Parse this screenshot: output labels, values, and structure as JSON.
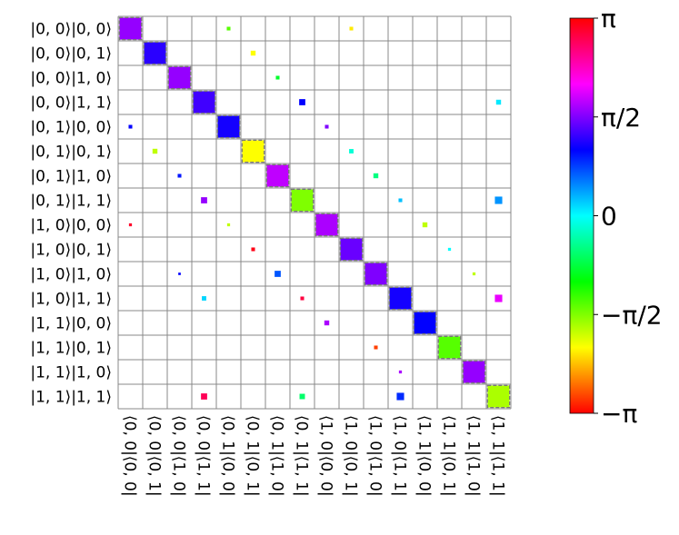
{
  "chart_data": {
    "type": "hinton",
    "rows": [
      "|0, 0⟩|0, 0⟩",
      "|0, 0⟩|0, 1⟩",
      "|0, 0⟩|1, 0⟩",
      "|0, 0⟩|1, 1⟩",
      "|0, 1⟩|0, 0⟩",
      "|0, 1⟩|0, 1⟩",
      "|0, 1⟩|1, 0⟩",
      "|0, 1⟩|1, 1⟩",
      "|1, 0⟩|0, 0⟩",
      "|1, 0⟩|0, 1⟩",
      "|1, 0⟩|1, 0⟩",
      "|1, 0⟩|1, 1⟩",
      "|1, 1⟩|0, 0⟩",
      "|1, 1⟩|0, 1⟩",
      "|1, 1⟩|1, 0⟩",
      "|1, 1⟩|1, 1⟩"
    ],
    "columns": [
      "⟨0, 0|⟨0, 0|",
      "⟨0, 0|⟨0, 1|",
      "⟨0, 0|⟨1, 0|",
      "⟨0, 0|⟨1, 1|",
      "⟨0, 1|⟨0, 0|",
      "⟨0, 1|⟨0, 1|",
      "⟨0, 1|⟨1, 0|",
      "⟨0, 1|⟨1, 1|",
      "⟨1, 0|⟨0, 0|",
      "⟨1, 0|⟨0, 1|",
      "⟨1, 0|⟨1, 0|",
      "⟨1, 0|⟨1, 1|",
      "⟨1, 1|⟨0, 0|",
      "⟨1, 1|⟨0, 1|",
      "⟨1, 1|⟨1, 0|",
      "⟨1, 1|⟨1, 1|"
    ],
    "elements": [
      {
        "row": 0,
        "col": 0,
        "size": 0.9,
        "phase": 1.66
      },
      {
        "row": 1,
        "col": 1,
        "size": 0.9,
        "phase": 1.22
      },
      {
        "row": 2,
        "col": 2,
        "size": 0.9,
        "phase": 1.66
      },
      {
        "row": 3,
        "col": 3,
        "size": 0.9,
        "phase": 1.31
      },
      {
        "row": 4,
        "col": 4,
        "size": 0.9,
        "phase": 1.13
      },
      {
        "row": 5,
        "col": 5,
        "size": 0.9,
        "phase": -2.09
      },
      {
        "row": 6,
        "col": 6,
        "size": 0.9,
        "phase": 1.83
      },
      {
        "row": 7,
        "col": 7,
        "size": 0.9,
        "phase": -1.57
      },
      {
        "row": 8,
        "col": 8,
        "size": 0.9,
        "phase": 1.75
      },
      {
        "row": 9,
        "col": 9,
        "size": 0.9,
        "phase": 1.48
      },
      {
        "row": 10,
        "col": 10,
        "size": 0.9,
        "phase": 1.57
      },
      {
        "row": 11,
        "col": 11,
        "size": 0.9,
        "phase": 1.13
      },
      {
        "row": 12,
        "col": 12,
        "size": 0.9,
        "phase": 1.05
      },
      {
        "row": 13,
        "col": 13,
        "size": 0.9,
        "phase": -1.4
      },
      {
        "row": 14,
        "col": 14,
        "size": 0.9,
        "phase": 1.66
      },
      {
        "row": 15,
        "col": 15,
        "size": 0.9,
        "phase": -1.75
      },
      {
        "row": 0,
        "col": 4,
        "size": 0.15,
        "phase": -1.4
      },
      {
        "row": 0,
        "col": 9,
        "size": 0.15,
        "phase": -2.18
      },
      {
        "row": 1,
        "col": 5,
        "size": 0.2,
        "phase": -2.09
      },
      {
        "row": 2,
        "col": 6,
        "size": 0.15,
        "phase": -0.87
      },
      {
        "row": 3,
        "col": 7,
        "size": 0.25,
        "phase": 1.05
      },
      {
        "row": 3,
        "col": 15,
        "size": 0.2,
        "phase": 0.09
      },
      {
        "row": 4,
        "col": 0,
        "size": 0.15,
        "phase": 1.05
      },
      {
        "row": 4,
        "col": 8,
        "size": 0.15,
        "phase": 1.57
      },
      {
        "row": 5,
        "col": 1,
        "size": 0.2,
        "phase": -1.83
      },
      {
        "row": 5,
        "col": 9,
        "size": 0.18,
        "phase": -0.17
      },
      {
        "row": 6,
        "col": 2,
        "size": 0.15,
        "phase": 0.96
      },
      {
        "row": 6,
        "col": 10,
        "size": 0.2,
        "phase": -0.52
      },
      {
        "row": 7,
        "col": 3,
        "size": 0.25,
        "phase": 1.66
      },
      {
        "row": 7,
        "col": 11,
        "size": 0.15,
        "phase": 0.26
      },
      {
        "row": 7,
        "col": 15,
        "size": 0.3,
        "phase": 0.44
      },
      {
        "row": 8,
        "col": 0,
        "size": 0.12,
        "phase": 2.97
      },
      {
        "row": 8,
        "col": 4,
        "size": 0.12,
        "phase": -1.83
      },
      {
        "row": 8,
        "col": 12,
        "size": 0.2,
        "phase": -1.83
      },
      {
        "row": 9,
        "col": 5,
        "size": 0.15,
        "phase": 3.05
      },
      {
        "row": 9,
        "col": 13,
        "size": 0.12,
        "phase": 0
      },
      {
        "row": 10,
        "col": 2,
        "size": 0.1,
        "phase": 1.05
      },
      {
        "row": 10,
        "col": 6,
        "size": 0.25,
        "phase": 0.7
      },
      {
        "row": 10,
        "col": 14,
        "size": 0.12,
        "phase": -1.83
      },
      {
        "row": 11,
        "col": 3,
        "size": 0.18,
        "phase": 0.17
      },
      {
        "row": 11,
        "col": 7,
        "size": 0.15,
        "phase": 2.88
      },
      {
        "row": 11,
        "col": 15,
        "size": 0.3,
        "phase": 2.01
      },
      {
        "row": 12,
        "col": 8,
        "size": 0.2,
        "phase": 1.75
      },
      {
        "row": 13,
        "col": 10,
        "size": 0.15,
        "phase": -2.88
      },
      {
        "row": 14,
        "col": 11,
        "size": 0.12,
        "phase": 1.75
      },
      {
        "row": 15,
        "col": 3,
        "size": 0.25,
        "phase": 2.79
      },
      {
        "row": 15,
        "col": 7,
        "size": 0.22,
        "phase": -0.61
      },
      {
        "row": 15,
        "col": 11,
        "size": 0.3,
        "phase": 0.87
      }
    ],
    "clim": [
      -3.1416,
      3.1416
    ],
    "cticks": [
      {
        "value": 3.1416,
        "label": "π"
      },
      {
        "value": 1.5708,
        "label": "π/2"
      },
      {
        "value": 0,
        "label": "0"
      },
      {
        "value": -1.5708,
        "label": "−π/2"
      },
      {
        "value": -3.1416,
        "label": "−π"
      }
    ]
  }
}
